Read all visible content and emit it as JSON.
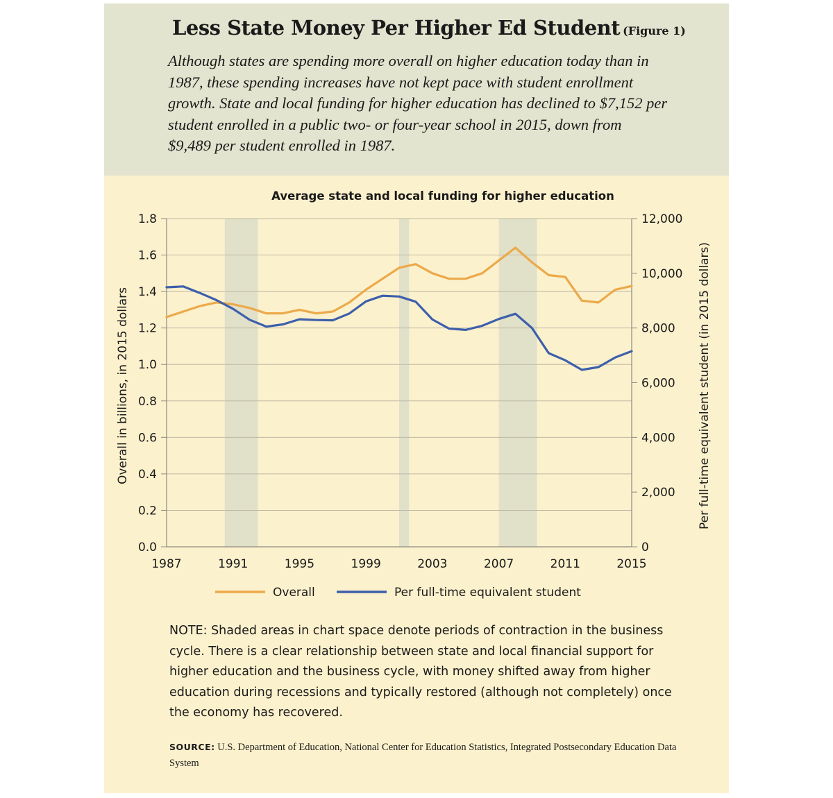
{
  "header": {
    "title": "Less State Money Per Higher Ed Student",
    "figure_tag": "(Figure 1)",
    "intro": "Although states are spending more overall on higher education today than in 1987, these spending increases have not kept pace with student enrollment growth. State and local funding for higher education has declined to $7,152 per student enrolled in a public two- or four-year school in 2015, down from $9,489 per student enrolled in 1987."
  },
  "chart_data": {
    "type": "line",
    "title": "Average state and local funding for higher education",
    "y_left_label": "Overall in billions, in 2015 dollars",
    "y_right_label": "Per full-time equivalent student (in 2015 dollars)",
    "x_range": [
      1987,
      2015
    ],
    "y_left_range": [
      0,
      1.8
    ],
    "y_right_range": [
      0,
      12000
    ],
    "x_ticks": [
      "1987",
      "1991",
      "1995",
      "1999",
      "2003",
      "2007",
      "2011",
      "2015"
    ],
    "y_left_ticks": [
      "0.0",
      "0.2",
      "0.4",
      "0.6",
      "0.8",
      "1.0",
      "1.2",
      "1.4",
      "1.6",
      "1.8"
    ],
    "y_right_ticks": [
      "0",
      "2,000",
      "4,000",
      "6,000",
      "8,000",
      "10,000",
      "12,000"
    ],
    "recessions": [
      [
        1990.5,
        1992.5
      ],
      [
        2001.0,
        2001.6
      ],
      [
        2007.0,
        2009.3
      ]
    ],
    "grid": "horizontal",
    "legend_position": "bottom",
    "series": [
      {
        "name": "Overall",
        "axis": "left",
        "color": "#eca94a",
        "x": [
          1987,
          1988,
          1989,
          1990,
          1991,
          1992,
          1993,
          1994,
          1995,
          1996,
          1997,
          1998,
          1999,
          2000,
          2001,
          2002,
          2003,
          2004,
          2005,
          2006,
          2007,
          2008,
          2009,
          2010,
          2011,
          2012,
          2013,
          2014,
          2015
        ],
        "values": [
          1.26,
          1.29,
          1.32,
          1.34,
          1.33,
          1.31,
          1.28,
          1.28,
          1.3,
          1.28,
          1.29,
          1.34,
          1.41,
          1.47,
          1.53,
          1.55,
          1.5,
          1.47,
          1.47,
          1.5,
          1.57,
          1.64,
          1.56,
          1.49,
          1.48,
          1.35,
          1.34,
          1.41,
          1.43
        ]
      },
      {
        "name": "Per full-time equivalent student",
        "axis": "right",
        "color": "#3d5fab",
        "x": [
          1987,
          1988,
          1989,
          1990,
          1991,
          1992,
          1993,
          1994,
          1995,
          1996,
          1997,
          1998,
          1999,
          2000,
          2001,
          2002,
          2003,
          2004,
          2005,
          2006,
          2007,
          2008,
          2009,
          2010,
          2011,
          2012,
          2013,
          2014,
          2015
        ],
        "values": [
          9489,
          9520,
          9280,
          9020,
          8700,
          8300,
          8050,
          8130,
          8320,
          8290,
          8280,
          8530,
          8970,
          9180,
          9150,
          8960,
          8310,
          7980,
          7930,
          8080,
          8330,
          8520,
          8000,
          7080,
          6820,
          6470,
          6570,
          6920,
          7152
        ]
      }
    ]
  },
  "note": "NOTE: Shaded areas in chart space denote periods of contraction in the business cycle. There is a clear relationship between state and local financial support for higher education and the business cycle, with money shifted away from higher education during recessions and typically restored (although not completely) once the economy has recovered.",
  "source": {
    "label": "SOURCE:",
    "text": "U.S. Department of Education, National Center for Education Statistics, Integrated Postsecondary Education Data System"
  }
}
